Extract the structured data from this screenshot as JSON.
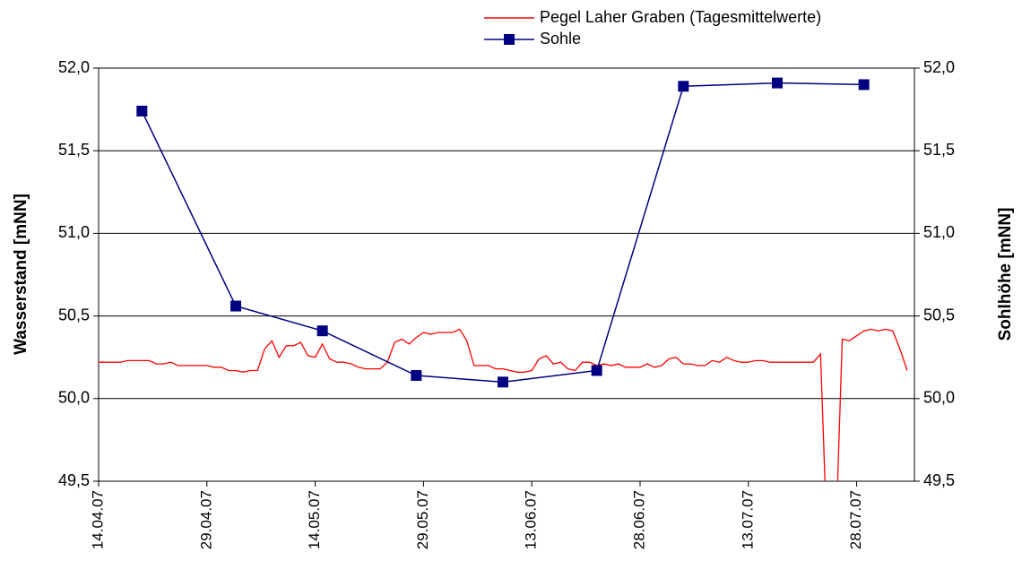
{
  "chart_data": {
    "type": "line",
    "ylabel": "Wasserstand [mNN]",
    "y2label": "Sohlhöhe [mNN]",
    "xlim": [
      "2007-04-14",
      "2007-08-05"
    ],
    "xticks": [
      {
        "value": "2007-04-14",
        "label": "14.04.07"
      },
      {
        "value": "2007-04-29",
        "label": "29.04.07"
      },
      {
        "value": "2007-05-14",
        "label": "14.05.07"
      },
      {
        "value": "2007-05-29",
        "label": "29.05.07"
      },
      {
        "value": "2007-06-13",
        "label": "13.06.07"
      },
      {
        "value": "2007-06-28",
        "label": "28.06.07"
      },
      {
        "value": "2007-07-13",
        "label": "13.07.07"
      },
      {
        "value": "2007-07-28",
        "label": "28.07.07"
      }
    ],
    "ylim": [
      49.5,
      52.0
    ],
    "yticks": [
      {
        "value": 49.5,
        "label": "49,5"
      },
      {
        "value": 50.0,
        "label": "50,0"
      },
      {
        "value": 50.5,
        "label": "50,5"
      },
      {
        "value": 51.0,
        "label": "51,0"
      },
      {
        "value": 51.5,
        "label": "51,5"
      },
      {
        "value": 52.0,
        "label": "52,0"
      }
    ],
    "y2lim": [
      49.5,
      52.0
    ],
    "y2ticks": [
      {
        "value": 49.5,
        "label": "49,5"
      },
      {
        "value": 50.0,
        "label": "50,0"
      },
      {
        "value": 50.5,
        "label": "50,5"
      },
      {
        "value": 51.0,
        "label": "51,0"
      },
      {
        "value": 51.5,
        "label": "51,5"
      },
      {
        "value": 52.0,
        "label": "52,0"
      }
    ],
    "grid": true,
    "legend": "top",
    "series": [
      {
        "name": "Pegel Laher Graben (Tagesmittelwerte)",
        "color": "#ff0000",
        "marker": "none",
        "x": [
          "2007-04-14",
          "2007-04-15",
          "2007-04-16",
          "2007-04-17",
          "2007-04-18",
          "2007-04-19",
          "2007-04-20",
          "2007-04-21",
          "2007-04-22",
          "2007-04-23",
          "2007-04-24",
          "2007-04-25",
          "2007-04-26",
          "2007-04-27",
          "2007-04-28",
          "2007-04-29",
          "2007-04-30",
          "2007-05-01",
          "2007-05-02",
          "2007-05-03",
          "2007-05-04",
          "2007-05-05",
          "2007-05-06",
          "2007-05-07",
          "2007-05-08",
          "2007-05-09",
          "2007-05-10",
          "2007-05-11",
          "2007-05-12",
          "2007-05-13",
          "2007-05-14",
          "2007-05-15",
          "2007-05-16",
          "2007-05-17",
          "2007-05-18",
          "2007-05-19",
          "2007-05-20",
          "2007-05-21",
          "2007-05-22",
          "2007-05-23",
          "2007-05-24",
          "2007-05-25",
          "2007-05-26",
          "2007-05-27",
          "2007-05-28",
          "2007-05-29",
          "2007-05-30",
          "2007-05-31",
          "2007-06-01",
          "2007-06-02",
          "2007-06-03",
          "2007-06-04",
          "2007-06-05",
          "2007-06-06",
          "2007-06-07",
          "2007-06-08",
          "2007-06-09",
          "2007-06-10",
          "2007-06-11",
          "2007-06-12",
          "2007-06-13",
          "2007-06-14",
          "2007-06-15",
          "2007-06-16",
          "2007-06-17",
          "2007-06-18",
          "2007-06-19",
          "2007-06-20",
          "2007-06-21",
          "2007-06-22",
          "2007-06-23",
          "2007-06-24",
          "2007-06-25",
          "2007-06-26",
          "2007-06-27",
          "2007-06-28",
          "2007-06-29",
          "2007-06-30",
          "2007-07-01",
          "2007-07-02",
          "2007-07-03",
          "2007-07-04",
          "2007-07-05",
          "2007-07-06",
          "2007-07-07",
          "2007-07-08",
          "2007-07-09",
          "2007-07-10",
          "2007-07-11",
          "2007-07-12",
          "2007-07-13",
          "2007-07-14",
          "2007-07-15",
          "2007-07-16",
          "2007-07-17",
          "2007-07-18",
          "2007-07-19",
          "2007-07-20",
          "2007-07-21",
          "2007-07-22",
          "2007-07-23",
          "2007-07-24",
          "2007-07-25",
          "2007-07-26",
          "2007-07-27",
          "2007-07-28",
          "2007-07-29",
          "2007-07-30",
          "2007-07-31",
          "2007-08-01",
          "2007-08-02",
          "2007-08-03",
          "2007-08-04"
        ],
        "values": [
          50.22,
          50.22,
          50.22,
          50.22,
          50.23,
          50.23,
          50.23,
          50.23,
          50.21,
          50.21,
          50.22,
          50.2,
          50.2,
          50.2,
          50.2,
          50.2,
          50.19,
          50.19,
          50.17,
          50.17,
          50.16,
          50.17,
          50.17,
          50.3,
          50.35,
          50.25,
          50.32,
          50.32,
          50.34,
          50.26,
          50.25,
          50.33,
          50.24,
          50.22,
          50.22,
          50.21,
          50.19,
          50.18,
          50.18,
          50.18,
          50.22,
          50.34,
          50.36,
          50.33,
          50.37,
          50.4,
          50.39,
          50.4,
          50.4,
          50.4,
          50.42,
          50.35,
          50.2,
          50.2,
          50.2,
          50.18,
          50.18,
          50.17,
          50.16,
          50.16,
          50.17,
          50.24,
          50.26,
          50.21,
          50.22,
          50.18,
          50.17,
          50.22,
          50.22,
          50.2,
          50.21,
          50.2,
          50.21,
          50.19,
          50.19,
          50.19,
          50.21,
          50.19,
          50.2,
          50.24,
          50.25,
          50.21,
          50.21,
          50.2,
          50.2,
          50.23,
          50.22,
          50.25,
          50.23,
          50.22,
          50.22,
          50.23,
          50.23,
          50.22,
          50.22,
          50.22,
          50.22,
          50.22,
          50.22,
          50.22,
          50.27,
          49.0,
          49.0,
          50.36,
          50.35,
          50.38,
          50.41,
          50.42,
          50.41,
          50.42,
          50.41,
          50.3,
          50.17
        ]
      },
      {
        "name": "Sohle",
        "color": "#000080",
        "marker": "square",
        "axis": "y2",
        "x": [
          "2007-04-20",
          "2007-05-03",
          "2007-05-15",
          "2007-05-28",
          "2007-06-09",
          "2007-06-22",
          "2007-07-04",
          "2007-07-17",
          "2007-07-29"
        ],
        "values": [
          51.74,
          50.56,
          50.41,
          50.14,
          50.1,
          50.17,
          51.89,
          51.91,
          51.9
        ]
      }
    ]
  }
}
